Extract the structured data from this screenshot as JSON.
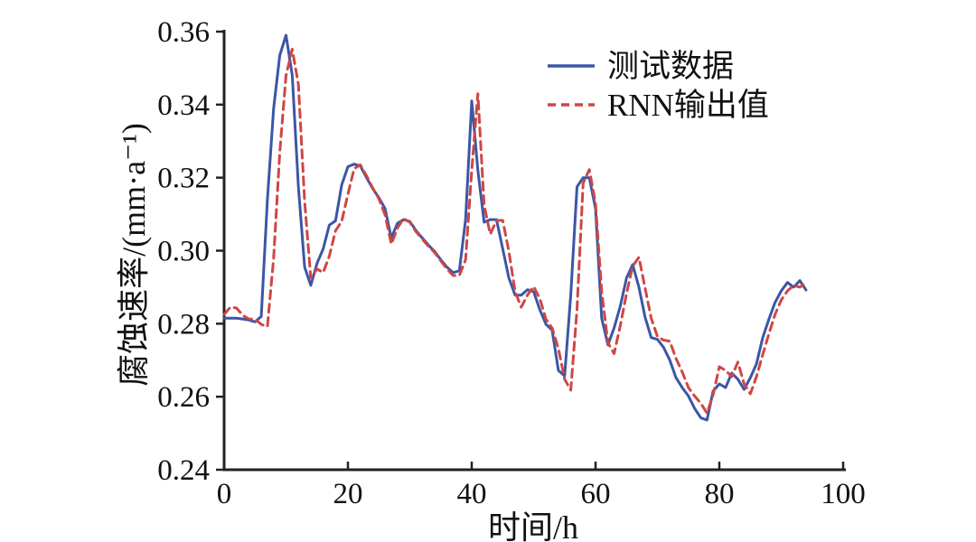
{
  "figure": {
    "background": "#ffffff",
    "axis_color": "#222222",
    "text_color": "#111111"
  },
  "chart_data": {
    "type": "line",
    "title": "",
    "xlabel": "时间/h",
    "ylabel": "腐蚀速率/(mm·a⁻¹)",
    "xlim": [
      0,
      100
    ],
    "ylim": [
      0.24,
      0.36
    ],
    "grid": false,
    "legend_position": "upper right",
    "x_ticks": [
      0,
      20,
      40,
      60,
      80,
      100
    ],
    "x_tick_labels": [
      "0",
      "20",
      "40",
      "60",
      "80",
      "100"
    ],
    "y_ticks": [
      0.24,
      0.26,
      0.28,
      0.3,
      0.32,
      0.34,
      0.36
    ],
    "y_tick_labels": [
      "0.24",
      "0.26",
      "0.28",
      "0.30",
      "0.32",
      "0.34",
      "0.36"
    ],
    "x": [
      0,
      1,
      2,
      3,
      4,
      5,
      6,
      7,
      8,
      9,
      10,
      11,
      12,
      13,
      14,
      15,
      16,
      17,
      18,
      19,
      20,
      21,
      22,
      23,
      24,
      25,
      26,
      27,
      28,
      29,
      30,
      31,
      32,
      33,
      34,
      35,
      36,
      37,
      38,
      39,
      40,
      41,
      42,
      43,
      44,
      45,
      46,
      47,
      48,
      49,
      50,
      51,
      52,
      53,
      54,
      55,
      56,
      57,
      58,
      59,
      60,
      61,
      62,
      63,
      64,
      65,
      66,
      67,
      68,
      69,
      70,
      71,
      72,
      73,
      74,
      75,
      76,
      77,
      78,
      79,
      80,
      81,
      82,
      83,
      84,
      85,
      86,
      87,
      88,
      89,
      90,
      91,
      92,
      93,
      94
    ],
    "series": [
      {
        "name": "测试数据",
        "color": "#3c56a5",
        "style": "solid",
        "values": [
          0.2815,
          0.2815,
          0.2815,
          0.2813,
          0.281,
          0.2805,
          0.282,
          0.314,
          0.339,
          0.3535,
          0.359,
          0.348,
          0.3175,
          0.2955,
          0.2905,
          0.2965,
          0.3005,
          0.307,
          0.3082,
          0.318,
          0.323,
          0.3237,
          0.3232,
          0.32,
          0.317,
          0.3145,
          0.3115,
          0.3035,
          0.3075,
          0.3085,
          0.308,
          0.3055,
          0.3035,
          0.3015,
          0.2998,
          0.2975,
          0.2955,
          0.294,
          0.2945,
          0.3085,
          0.341,
          0.322,
          0.3078,
          0.3085,
          0.3085,
          0.3005,
          0.2925,
          0.2878,
          0.2878,
          0.2893,
          0.2888,
          0.2838,
          0.2798,
          0.2782,
          0.2672,
          0.2657,
          0.288,
          0.3175,
          0.32,
          0.32,
          0.3115,
          0.2815,
          0.2742,
          0.2788,
          0.2848,
          0.2925,
          0.2962,
          0.29,
          0.2818,
          0.2762,
          0.2757,
          0.2735,
          0.27,
          0.2652,
          0.2625,
          0.2602,
          0.2568,
          0.2542,
          0.2536,
          0.2615,
          0.2635,
          0.2625,
          0.2665,
          0.2648,
          0.262,
          0.2652,
          0.269,
          0.2762,
          0.2812,
          0.2858,
          0.289,
          0.2913,
          0.29,
          0.2918,
          0.2892
        ]
      },
      {
        "name": "RNN输出值",
        "color": "#cf4644",
        "style": "dashed",
        "values": [
          0.2825,
          0.2845,
          0.2843,
          0.2823,
          0.2813,
          0.2812,
          0.2798,
          0.2792,
          0.298,
          0.327,
          0.348,
          0.3552,
          0.3455,
          0.3135,
          0.2925,
          0.295,
          0.294,
          0.2985,
          0.3055,
          0.308,
          0.3155,
          0.3225,
          0.3235,
          0.3205,
          0.3172,
          0.3142,
          0.3098,
          0.3018,
          0.3062,
          0.3088,
          0.3078,
          0.3052,
          0.3032,
          0.3012,
          0.2995,
          0.2972,
          0.295,
          0.2932,
          0.2932,
          0.2975,
          0.322,
          0.343,
          0.3125,
          0.3045,
          0.3083,
          0.3083,
          0.2998,
          0.2888,
          0.2845,
          0.2878,
          0.2902,
          0.2868,
          0.2812,
          0.2788,
          0.2732,
          0.2648,
          0.2618,
          0.284,
          0.3185,
          0.3222,
          0.313,
          0.2888,
          0.2748,
          0.2718,
          0.2795,
          0.2882,
          0.2958,
          0.2982,
          0.2898,
          0.2815,
          0.2765,
          0.2755,
          0.2752,
          0.2705,
          0.2668,
          0.2625,
          0.2602,
          0.2582,
          0.2555,
          0.2605,
          0.2682,
          0.2672,
          0.2655,
          0.2695,
          0.2635,
          0.2608,
          0.2655,
          0.2715,
          0.2772,
          0.2825,
          0.2865,
          0.289,
          0.2905,
          0.29,
          0.2912
        ]
      }
    ],
    "legend": {
      "items": [
        {
          "label": "测试数据",
          "color": "#3c56a5",
          "style": "solid"
        },
        {
          "label": "RNN输出值",
          "color": "#cf4644",
          "style": "dashed"
        }
      ]
    }
  }
}
